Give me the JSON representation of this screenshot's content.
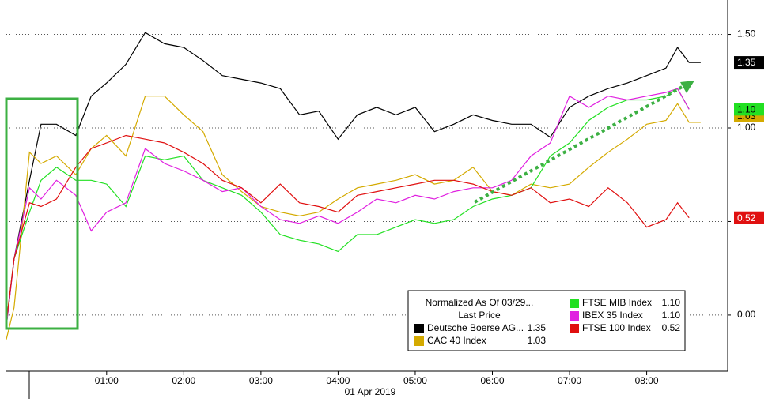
{
  "chart_data": {
    "type": "line",
    "xlabel": "01 Apr 2019",
    "legend_title": "Normalized As Of 03/29...",
    "legend_subtitle": "Last Price",
    "x": [
      -0.3,
      -0.2,
      0,
      0.15,
      0.35,
      0.6,
      0.8,
      1.0,
      1.25,
      1.5,
      1.75,
      2.0,
      2.25,
      2.5,
      2.75,
      3.0,
      3.25,
      3.5,
      3.75,
      4.0,
      4.25,
      4.5,
      4.75,
      5.0,
      5.25,
      5.5,
      5.75,
      6.0,
      6.25,
      6.5,
      6.75,
      7.0,
      7.25,
      7.5,
      7.75,
      8.0,
      8.25,
      8.4,
      8.55,
      8.7
    ],
    "xlim": [
      -0.3,
      9.05
    ],
    "xticks": [
      {
        "value": 1,
        "label": "01:00"
      },
      {
        "value": 2,
        "label": "02:00"
      },
      {
        "value": 3,
        "label": "03:00"
      },
      {
        "value": 4,
        "label": "04:00"
      },
      {
        "value": 5,
        "label": "05:00"
      },
      {
        "value": 6,
        "label": "06:00"
      },
      {
        "value": 7,
        "label": "07:00"
      },
      {
        "value": 8,
        "label": "08:00"
      }
    ],
    "ylim": [
      -0.3,
      1.65
    ],
    "yticks": [
      {
        "value": 0,
        "label": "0.00"
      },
      {
        "value": 0.5,
        "label": "0.50"
      },
      {
        "value": 1,
        "label": "1.00"
      },
      {
        "value": 1.5,
        "label": "1.50"
      }
    ],
    "grid": true,
    "series": [
      {
        "name": "Deutsche Boerse AG...",
        "color": "#000000",
        "last_label": "1.35",
        "values": [
          -0.06,
          0.3,
          0.72,
          1.02,
          1.02,
          0.96,
          1.17,
          1.24,
          1.34,
          1.51,
          1.45,
          1.43,
          1.36,
          1.28,
          1.26,
          1.24,
          1.21,
          1.07,
          1.09,
          0.94,
          1.07,
          1.11,
          1.07,
          1.11,
          0.98,
          1.02,
          1.07,
          1.04,
          1.02,
          1.02,
          0.95,
          1.11,
          1.17,
          1.21,
          1.24,
          1.28,
          1.32,
          1.43,
          1.35,
          1.35
        ]
      },
      {
        "name": "CAC 40 Index",
        "color": "#d4aa00",
        "last_label": "1.03",
        "values": [
          -0.13,
          0.04,
          0.87,
          0.81,
          0.85,
          0.75,
          0.89,
          0.96,
          0.85,
          1.17,
          1.17,
          1.07,
          0.98,
          0.75,
          0.66,
          0.58,
          0.55,
          0.53,
          0.55,
          0.62,
          0.68,
          0.7,
          0.72,
          0.75,
          0.7,
          0.72,
          0.79,
          0.66,
          0.64,
          0.7,
          0.68,
          0.7,
          0.79,
          0.87,
          0.94,
          1.02,
          1.04,
          1.13,
          1.03,
          1.03
        ]
      },
      {
        "name": "FTSE MIB Index",
        "color": "#22e022",
        "last_label": "1.10",
        "values": [
          -0.04,
          0.3,
          0.55,
          0.72,
          0.79,
          0.72,
          0.72,
          0.7,
          0.58,
          0.85,
          0.83,
          0.85,
          0.72,
          0.68,
          0.64,
          0.55,
          0.43,
          0.4,
          0.38,
          0.34,
          0.43,
          0.43,
          0.47,
          0.51,
          0.49,
          0.51,
          0.58,
          0.62,
          0.64,
          0.68,
          0.85,
          0.92,
          1.04,
          1.11,
          1.15,
          1.15,
          1.17,
          1.21,
          1.1,
          null
        ]
      },
      {
        "name": "IBEX 35 Index",
        "color": "#e020e0",
        "last_label": "1.10",
        "values": [
          -0.06,
          0.3,
          0.68,
          0.62,
          0.72,
          0.64,
          0.45,
          0.55,
          0.6,
          0.89,
          0.81,
          0.77,
          0.72,
          0.66,
          0.68,
          0.58,
          0.51,
          0.49,
          0.53,
          0.49,
          0.55,
          0.62,
          0.6,
          0.64,
          0.62,
          0.66,
          0.68,
          0.68,
          0.72,
          0.85,
          0.92,
          1.17,
          1.11,
          1.17,
          1.15,
          1.17,
          1.19,
          1.21,
          1.1,
          null
        ]
      },
      {
        "name": "FTSE 100 Index",
        "color": "#e01010",
        "last_label": "0.52",
        "values": [
          -0.04,
          0.3,
          0.6,
          0.58,
          0.62,
          0.79,
          0.89,
          0.92,
          0.96,
          0.94,
          0.92,
          0.87,
          0.81,
          0.72,
          0.68,
          0.6,
          0.7,
          0.6,
          0.58,
          0.55,
          0.64,
          0.66,
          0.68,
          0.7,
          0.72,
          0.72,
          0.7,
          0.66,
          0.64,
          0.68,
          0.6,
          0.62,
          0.58,
          0.68,
          0.6,
          0.47,
          0.51,
          0.6,
          0.52,
          null
        ]
      }
    ]
  }
}
